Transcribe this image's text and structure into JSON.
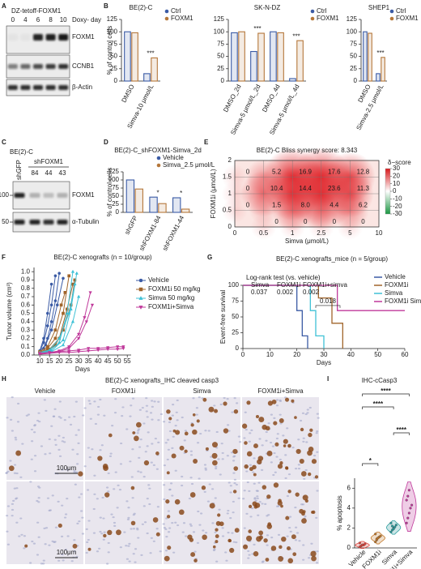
{
  "panel_labels": [
    "A",
    "B",
    "C",
    "D",
    "E",
    "F",
    "G",
    "H",
    "I"
  ],
  "blot_a": {
    "title": "DZ-tetoff-FOXM1",
    "lanes": [
      0,
      4,
      6,
      8,
      10
    ],
    "lane_label": "Doxy- day",
    "bands": [
      "FOXM1",
      "CCNB1",
      "β-Actin"
    ]
  },
  "blot_c": {
    "cell_line": "BE(2)-C",
    "control": "shGFP",
    "group": "shFOXM1",
    "lanes": [
      84,
      44,
      43
    ],
    "markers": [
      100,
      50
    ],
    "bands": [
      "FOXM1",
      "α-Tubulin"
    ]
  },
  "ihc_h": {
    "title": "BE(2)-C xenografts_IHC cleaved casp3",
    "columns": [
      "Vehicle",
      "FOXM1i",
      "Simva",
      "FOXM1i+Simva"
    ],
    "scale_bar": "100μm"
  },
  "chart_data": [
    {
      "type": "bar",
      "title": "BE(2)-C",
      "y_label": "% of control cells",
      "categories": [
        "DMSO",
        "Simva-10 μmol/L"
      ],
      "series": [
        {
          "name": "Ctrl",
          "color": "#3b5ba5",
          "values": [
            100,
            15
          ]
        },
        {
          "name": "FOXM1",
          "color": "#b5773a",
          "values": [
            98,
            47
          ]
        }
      ],
      "significance": [
        null,
        "***"
      ],
      "ylim": [
        0,
        125
      ],
      "yticks": [
        0,
        25,
        50,
        75,
        100,
        125
      ]
    },
    {
      "type": "bar",
      "title": "SK-N-DZ",
      "categories": [
        "DMSO_2d",
        "Simva-5 μmol/L_2d",
        "DMSO_4d",
        "Simva-5 μmol/L_4d"
      ],
      "series": [
        {
          "name": "Ctrl",
          "color": "#3b5ba5",
          "values": [
            98,
            60,
            100,
            5
          ]
        },
        {
          "name": "FOXM1",
          "color": "#b5773a",
          "values": [
            100,
            97,
            98,
            82
          ]
        }
      ],
      "significance": [
        null,
        "***",
        null,
        "***"
      ],
      "ylim": [
        0,
        125
      ],
      "yticks": [
        0,
        25,
        50,
        75,
        100,
        125
      ]
    },
    {
      "type": "bar",
      "title": "SHEP1",
      "categories": [
        "DMSO",
        "Simva-2.5 μmol/L"
      ],
      "series": [
        {
          "name": "Ctrl",
          "color": "#3b5ba5",
          "values": [
            100,
            15
          ]
        },
        {
          "name": "FOXM1",
          "color": "#b5773a",
          "values": [
            97,
            48
          ]
        }
      ],
      "significance": [
        null,
        "***"
      ],
      "ylim": [
        0,
        125
      ],
      "yticks": [
        0,
        25,
        50,
        75,
        100,
        125
      ]
    },
    {
      "type": "bar",
      "title": "BE(2)-C_shFOXM1-Simva_2d",
      "y_label": "% of control cells",
      "categories": [
        "shGFP",
        "shFOXM1-84",
        "shFOXM1-44"
      ],
      "series": [
        {
          "name": "Vehicle",
          "color": "#3b5ba5",
          "values": [
            100,
            47,
            45
          ]
        },
        {
          "name": "Simva_2.5 μmol/L",
          "color": "#b5773a",
          "values": [
            72,
            27,
            10
          ]
        }
      ],
      "significance": [
        null,
        "*",
        "*"
      ],
      "ylim": [
        0,
        125
      ],
      "yticks": [
        0,
        25,
        50,
        75,
        100,
        125
      ]
    },
    {
      "type": "heatmap",
      "title": "BE(2)-C Bliss synergy score: 8.343",
      "x_label": "Simva (μmol/L)",
      "y_label": "FOXM1i (μmol/L)",
      "categories": [
        0,
        0.5,
        1,
        2.5,
        5,
        10
      ],
      "y_categories": [
        0,
        0.5,
        1,
        1.5,
        2
      ],
      "values": [
        [
          null,
          0,
          0,
          0,
          0,
          null
        ],
        [
          0,
          1.5,
          8,
          4.4,
          6.2,
          null
        ],
        [
          0,
          10.4,
          14.4,
          23.6,
          11.3,
          null
        ],
        [
          0,
          5.2,
          16.9,
          17.6,
          12.8,
          null
        ],
        [
          null,
          null,
          null,
          null,
          null,
          null
        ]
      ],
      "value_labels": [
        [
          null,
          "0",
          "0",
          "0",
          "0",
          null
        ],
        [
          "0",
          "1.5",
          "8.0",
          "4.4",
          "6.2",
          null
        ],
        [
          "0",
          "10.4",
          "14.4",
          "23.6",
          "11.3",
          null
        ],
        [
          "0",
          "5.2",
          "16.9",
          "17.6",
          "12.8",
          null
        ],
        [
          null,
          null,
          null,
          null,
          null,
          null
        ]
      ],
      "colorbar_label": "δ−score",
      "colorbar_lim": [
        -30,
        30
      ],
      "colorbar_ticks": [
        30,
        20,
        10,
        0,
        -10,
        -20,
        -30
      ]
    },
    {
      "type": "line",
      "title": "BE(2)-C xenografts (n = 10/group)",
      "x_label": "Days",
      "y_label": "Tumor volume (cm³)",
      "xlim": [
        7,
        57
      ],
      "xticks": [
        10,
        15,
        20,
        25,
        30,
        35,
        40,
        45,
        50,
        55
      ],
      "ylim": [
        0,
        1.05
      ],
      "yticks": [
        {
          "value": 0,
          "label": "0.0"
        },
        0.1,
        0.2,
        0.3,
        0.4,
        0.5,
        0.6,
        0.7,
        0.8,
        0.9,
        {
          "value": 1,
          "label": "1.0"
        }
      ],
      "series": [
        {
          "name": "Vehicle",
          "color": "#3b5ba5",
          "marker": "circle",
          "curves": [
            {
              "x": [
                10,
                12,
                14,
                16,
                18
              ],
              "values": [
                0.05,
                0.15,
                0.35,
                0.6,
                0.95
              ]
            },
            {
              "x": [
                10,
                12,
                14,
                16,
                18,
                20
              ],
              "values": [
                0.03,
                0.08,
                0.2,
                0.4,
                0.65,
                0.98
              ]
            },
            {
              "x": [
                10,
                13,
                16,
                19,
                22
              ],
              "values": [
                0.05,
                0.12,
                0.3,
                0.6,
                0.92
              ]
            },
            {
              "x": [
                10,
                12,
                14,
                16
              ],
              "values": [
                0.05,
                0.2,
                0.5,
                0.85
              ]
            }
          ]
        },
        {
          "name": "FOXM1i 50 mg/kg",
          "color": "#a0642a",
          "marker": "square",
          "curves": [
            {
              "x": [
                10,
                14,
                18,
                22,
                25
              ],
              "values": [
                0.03,
                0.08,
                0.2,
                0.5,
                0.95
              ]
            },
            {
              "x": [
                10,
                14,
                18,
                22,
                26,
                28
              ],
              "values": [
                0.02,
                0.05,
                0.12,
                0.3,
                0.6,
                0.9
              ]
            },
            {
              "x": [
                10,
                15,
                20,
                24,
                27
              ],
              "values": [
                0.03,
                0.07,
                0.2,
                0.55,
                0.85
              ]
            },
            {
              "x": [
                10,
                14,
                18,
                21,
                23
              ],
              "values": [
                0.04,
                0.1,
                0.3,
                0.6,
                0.75
              ]
            }
          ]
        },
        {
          "name": "Simva 50 mg/kg",
          "color": "#3fc1d6",
          "marker": "triangle-up",
          "curves": [
            {
              "x": [
                10,
                15,
                20,
                24,
                27
              ],
              "values": [
                0.02,
                0.05,
                0.15,
                0.5,
                1
              ]
            },
            {
              "x": [
                10,
                15,
                20,
                25,
                28
              ],
              "values": [
                0.03,
                0.06,
                0.2,
                0.5,
                0.85
              ]
            },
            {
              "x": [
                10,
                16,
                22,
                26,
                29
              ],
              "values": [
                0.02,
                0.05,
                0.18,
                0.55,
                0.98
              ]
            },
            {
              "x": [
                10,
                16,
                22,
                27,
                30
              ],
              "values": [
                0.02,
                0.04,
                0.12,
                0.4,
                0.7
              ]
            }
          ]
        },
        {
          "name": "FOXM1i+Simva",
          "color": "#c0399b",
          "marker": "triangle-down",
          "curves": [
            {
              "x": [
                10,
                15,
                20,
                25,
                30,
                33,
                36
              ],
              "values": [
                0.02,
                0.03,
                0.05,
                0.1,
                0.25,
                0.45,
                0.75
              ]
            },
            {
              "x": [
                10,
                15,
                20,
                25,
                30,
                34,
                37
              ],
              "values": [
                0.02,
                0.03,
                0.04,
                0.08,
                0.2,
                0.4,
                0.6
              ]
            },
            {
              "x": [
                10,
                15,
                20,
                25,
                30,
                35,
                40,
                45,
                50,
                53
              ],
              "values": [
                0.02,
                0.03,
                0.04,
                0.05,
                0.06,
                0.08,
                0.08,
                0.09,
                0.1,
                0.1
              ]
            },
            {
              "x": [
                10,
                15,
                20,
                25,
                30,
                35,
                40,
                45,
                50,
                53
              ],
              "values": [
                0.01,
                0.02,
                0.03,
                0.03,
                0.04,
                0.05,
                0.06,
                0.07,
                0.07,
                0.08
              ]
            }
          ]
        }
      ]
    },
    {
      "type": "step",
      "title": "BE(2)-C xenografts_mice (n = 5/group)",
      "x_label": "Days",
      "y_label": "Event-free survival",
      "xlim": [
        0,
        60
      ],
      "xticks": [
        0,
        10,
        20,
        30,
        40,
        50,
        60
      ],
      "ylim": [
        0,
        100
      ],
      "yticks": [
        0,
        25,
        50,
        75,
        100
      ],
      "series": [
        {
          "name": "Vehicle",
          "color": "#3b5ba5",
          "x": [
            0,
            20,
            22,
            24
          ],
          "values": [
            100,
            60,
            20,
            0
          ]
        },
        {
          "name": "FOXM1i",
          "color": "#a0642a",
          "x": [
            0,
            28,
            33,
            37
          ],
          "values": [
            100,
            80,
            40,
            0
          ]
        },
        {
          "name": "Simva",
          "color": "#3fc1d6",
          "x": [
            0,
            25,
            27,
            30
          ],
          "values": [
            100,
            60,
            20,
            0
          ]
        },
        {
          "name": "FOXM1i Simva",
          "color": "#c0399b",
          "x": [
            0,
            35,
            60
          ],
          "values": [
            100,
            60,
            60
          ]
        }
      ],
      "test_title": "Log-rank test (vs. vehicle)",
      "tests": [
        {
          "name": "Simva",
          "p": 0.037
        },
        {
          "name": "FOXM1i",
          "p": 0.002
        },
        {
          "name": "FOXM1i+simva",
          "p": 0.002
        }
      ],
      "pairwise_p": 0.018
    },
    {
      "type": "violin",
      "title": "IHC-cCasp3",
      "y_label": "% apoptosis",
      "categories": [
        "Vehicle",
        "FOXM1i",
        "Simva",
        "FOXM1i+Simva"
      ],
      "colors": [
        "#e0473f",
        "#c47a2c",
        "#2a9d9e",
        "#c0399b"
      ],
      "points": [
        [
          0.1,
          0.2,
          0.3,
          0.3,
          0.4,
          0.5,
          0.2,
          0.3
        ],
        [
          0.6,
          0.8,
          1,
          1.1,
          1.2,
          1.4,
          0.9,
          1
        ],
        [
          1.6,
          1.8,
          2,
          2.1,
          2.3,
          2.5,
          2.2,
          1.9
        ],
        [
          2.5,
          3,
          3.5,
          4,
          4.3,
          4.8,
          5.2,
          5.8
        ]
      ],
      "ylim": [
        0,
        7
      ],
      "yticks": [
        0,
        2,
        4,
        6
      ],
      "comparisons": [
        {
          "from": "Vehicle",
          "to": "FOXM1i+Simva",
          "label": "****"
        },
        {
          "from": "Vehicle",
          "to": "Simva",
          "label": "****"
        },
        {
          "from": "Simva",
          "to": "FOXM1i+Simva",
          "label": "****"
        },
        {
          "from": "Vehicle",
          "to": "FOXM1i",
          "label": "*"
        }
      ]
    }
  ]
}
